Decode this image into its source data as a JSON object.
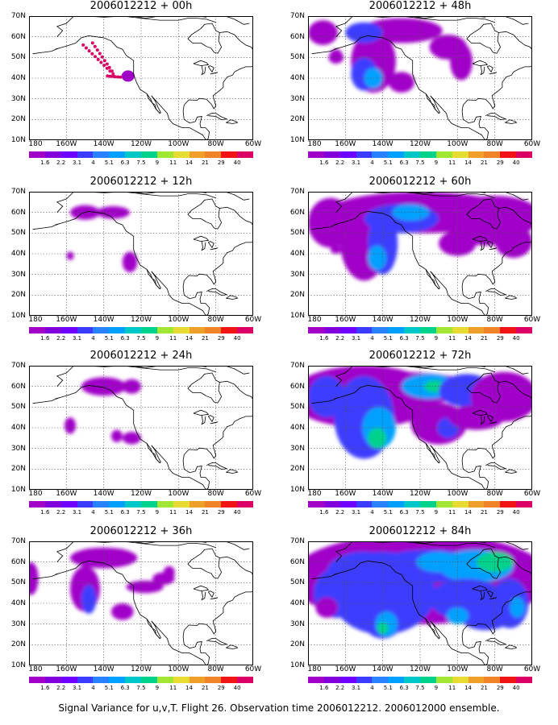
{
  "footer_text": "Signal Variance for u,v,T. Flight 26. Observation time 2006012212. 2006012000 ensemble.",
  "lat_labels": [
    "70N",
    "60N",
    "50N",
    "40N",
    "30N",
    "20N",
    "10N"
  ],
  "lon_labels": [
    "180",
    "160W",
    "140W",
    "120W",
    "100W",
    "80W",
    "60W"
  ],
  "colorbar": {
    "labels": [
      "1.6",
      "2.2",
      "3.1",
      "4",
      "5.1",
      "6.3",
      "7.5",
      "9",
      "11",
      "14",
      "21",
      "29",
      "40"
    ],
    "colors": [
      "#a000c8",
      "#8200dc",
      "#6e00ff",
      "#3c3cff",
      "#2882ff",
      "#00a0ff",
      "#00c8c8",
      "#00d28c",
      "#a0e632",
      "#e6dc32",
      "#f0a028",
      "#f08228",
      "#f01414",
      "#dc0064"
    ]
  },
  "panels": [
    {
      "id": "p00",
      "title": "2006012212 + 00h",
      "level": 0
    },
    {
      "id": "p48",
      "title": "2006012212 + 48h",
      "level": 4
    },
    {
      "id": "p12",
      "title": "2006012212 + 12h",
      "level": 1
    },
    {
      "id": "p60",
      "title": "2006012212 + 60h",
      "level": 5
    },
    {
      "id": "p24",
      "title": "2006012212 + 24h",
      "level": 2
    },
    {
      "id": "p72",
      "title": "2006012212 + 72h",
      "level": 6
    },
    {
      "id": "p36",
      "title": "2006012212 + 36h",
      "level": 3
    },
    {
      "id": "p84",
      "title": "2006012212 + 84h",
      "level": 7
    }
  ]
}
